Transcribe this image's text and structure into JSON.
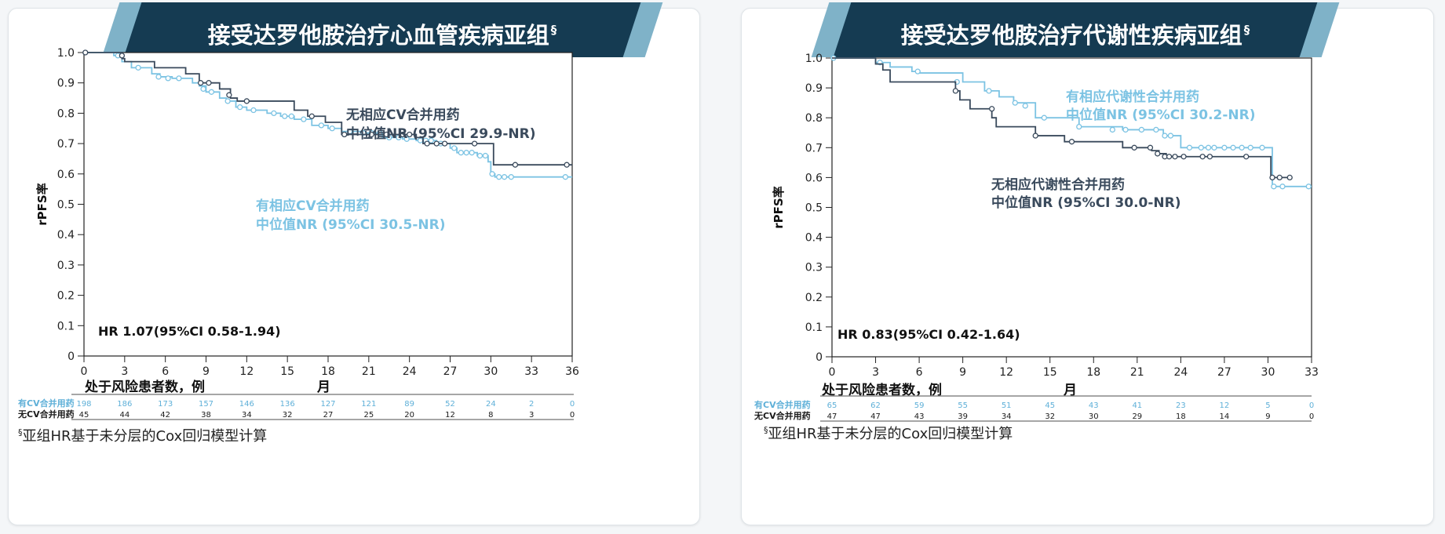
{
  "chart_data": [
    {
      "type": "line",
      "title": "接受达罗他胺治疗心血管疾病亚组",
      "title_mark": "§",
      "ylabel": "rPFS率",
      "xlabel": "月",
      "xlim": [
        0,
        36
      ],
      "ylim": [
        0,
        1.0
      ],
      "x_ticks": [
        "0",
        "3",
        "6",
        "9",
        "12",
        "15",
        "18",
        "21",
        "24",
        "27",
        "30",
        "33",
        "36"
      ],
      "y_ticks": [
        "0",
        "0.1",
        "0.2",
        "0.3",
        "0.4",
        "0.5",
        "0.6",
        "0.7",
        "0.8",
        "0.9",
        "1.0"
      ],
      "hr_text": "HR 1.07(95%CI 0.58-1.94)",
      "risk_title": "处于风险患者数，例",
      "footnote": "亚组HR基于未分层的Cox回归模型计算",
      "footnote_mark": "§",
      "grid": false,
      "series": [
        {
          "name": "有相应CV合并用药",
          "label_line1": "有相应CV合并用药",
          "label_line2": "中位值NR (95%CI 30.5-NR)",
          "color": "#7cc3e3",
          "steps": [
            [
              0,
              1.0
            ],
            [
              2.2,
              0.99
            ],
            [
              2.8,
              0.97
            ],
            [
              3.5,
              0.95
            ],
            [
              5.0,
              0.93
            ],
            [
              5.6,
              0.92
            ],
            [
              6.5,
              0.915
            ],
            [
              8.0,
              0.9
            ],
            [
              8.5,
              0.89
            ],
            [
              9.0,
              0.87
            ],
            [
              10.0,
              0.85
            ],
            [
              10.5,
              0.84
            ],
            [
              11.2,
              0.82
            ],
            [
              12.0,
              0.81
            ],
            [
              13.5,
              0.8
            ],
            [
              14.5,
              0.79
            ],
            [
              15.5,
              0.78
            ],
            [
              16.8,
              0.76
            ],
            [
              18.0,
              0.75
            ],
            [
              19.0,
              0.74
            ],
            [
              20.5,
              0.735
            ],
            [
              22.0,
              0.72
            ],
            [
              23.5,
              0.715
            ],
            [
              24.5,
              0.71
            ],
            [
              26.0,
              0.7
            ],
            [
              27.0,
              0.685
            ],
            [
              27.5,
              0.67
            ],
            [
              29.0,
              0.66
            ],
            [
              29.8,
              0.64
            ],
            [
              30.0,
              0.6
            ],
            [
              30.3,
              0.59
            ],
            [
              36,
              0.59
            ]
          ],
          "censor": [
            [
              2.5,
              0.99
            ],
            [
              4.0,
              0.95
            ],
            [
              5.5,
              0.92
            ],
            [
              6.2,
              0.915
            ],
            [
              7.0,
              0.915
            ],
            [
              8.8,
              0.88
            ],
            [
              9.4,
              0.87
            ],
            [
              10.6,
              0.84
            ],
            [
              11.5,
              0.82
            ],
            [
              12.5,
              0.81
            ],
            [
              14.0,
              0.8
            ],
            [
              14.8,
              0.79
            ],
            [
              15.3,
              0.79
            ],
            [
              16.2,
              0.78
            ],
            [
              17.5,
              0.76
            ],
            [
              18.3,
              0.75
            ],
            [
              19.6,
              0.74
            ],
            [
              20.6,
              0.735
            ],
            [
              21.2,
              0.735
            ],
            [
              21.8,
              0.735
            ],
            [
              22.5,
              0.72
            ],
            [
              23.2,
              0.72
            ],
            [
              23.8,
              0.715
            ],
            [
              24.8,
              0.71
            ],
            [
              25.2,
              0.71
            ],
            [
              25.6,
              0.71
            ],
            [
              26.3,
              0.7
            ],
            [
              27.3,
              0.685
            ],
            [
              27.8,
              0.67
            ],
            [
              28.2,
              0.67
            ],
            [
              28.6,
              0.67
            ],
            [
              29.2,
              0.66
            ],
            [
              29.6,
              0.66
            ],
            [
              30.1,
              0.6
            ],
            [
              30.6,
              0.59
            ],
            [
              31.0,
              0.59
            ],
            [
              31.5,
              0.59
            ],
            [
              35.5,
              0.59
            ]
          ]
        },
        {
          "name": "无相应CV合并用药",
          "label_line1": "无相应CV合并用药",
          "label_line2": "中位值NR (95%CI 29.9-NR)",
          "color": "#3a4a5c",
          "steps": [
            [
              0,
              1.0
            ],
            [
              2.8,
              0.98
            ],
            [
              3.0,
              0.97
            ],
            [
              5.2,
              0.95
            ],
            [
              7.5,
              0.93
            ],
            [
              8.5,
              0.9
            ],
            [
              10.0,
              0.88
            ],
            [
              10.8,
              0.85
            ],
            [
              11.3,
              0.84
            ],
            [
              12.0,
              0.84
            ],
            [
              15.5,
              0.81
            ],
            [
              16.5,
              0.79
            ],
            [
              17.8,
              0.77
            ],
            [
              19.0,
              0.73
            ],
            [
              24.5,
              0.72
            ],
            [
              25.0,
              0.7
            ],
            [
              27.0,
              0.7
            ],
            [
              30.0,
              0.7
            ],
            [
              30.2,
              0.63
            ],
            [
              36,
              0.63
            ]
          ],
          "censor": [
            [
              0.1,
              1.0
            ],
            [
              2.8,
              0.99
            ],
            [
              8.6,
              0.9
            ],
            [
              9.2,
              0.9
            ],
            [
              10.7,
              0.86
            ],
            [
              12.0,
              0.84
            ],
            [
              16.8,
              0.79
            ],
            [
              19.2,
              0.73
            ],
            [
              21.2,
              0.73
            ],
            [
              22.3,
              0.73
            ],
            [
              23.5,
              0.73
            ],
            [
              24.0,
              0.73
            ],
            [
              25.3,
              0.7
            ],
            [
              26.0,
              0.7
            ],
            [
              26.6,
              0.7
            ],
            [
              28.8,
              0.7
            ],
            [
              31.8,
              0.63
            ],
            [
              35.6,
              0.63
            ]
          ]
        }
      ],
      "risk_table": [
        {
          "label": "有CV合并用药",
          "color": "#5fb0d8",
          "values": [
            "198",
            "186",
            "173",
            "157",
            "146",
            "136",
            "127",
            "121",
            "89",
            "52",
            "24",
            "2",
            "0"
          ]
        },
        {
          "label": "无CV合并用药",
          "color": "#1a1a1a",
          "values": [
            "45",
            "44",
            "42",
            "38",
            "34",
            "32",
            "27",
            "25",
            "20",
            "12",
            "8",
            "3",
            "0"
          ]
        }
      ]
    },
    {
      "type": "line",
      "title": "接受达罗他胺治疗代谢性疾病亚组",
      "title_mark": "§",
      "ylabel": "rPFS率",
      "xlabel": "月",
      "xlim": [
        0,
        33
      ],
      "ylim": [
        0,
        1.0
      ],
      "x_ticks": [
        "0",
        "3",
        "6",
        "9",
        "12",
        "15",
        "18",
        "21",
        "24",
        "27",
        "30",
        "33"
      ],
      "y_ticks": [
        "0",
        "0.1",
        "0.2",
        "0.3",
        "0.4",
        "0.5",
        "0.6",
        "0.7",
        "0.8",
        "0.9",
        "1.0"
      ],
      "hr_text": "HR 0.83(95%CI 0.42-1.64)",
      "risk_title": "处于风险患者数，例",
      "footnote": "亚组HR基于未分层的Cox回归模型计算",
      "footnote_mark": "§",
      "grid": false,
      "series": [
        {
          "name": "有相应代谢性合并用药",
          "label_line1": "有相应代谢性合并用药",
          "label_line2": "中位值NR (95%CI 30.2-NR)",
          "color": "#7cc3e3",
          "steps": [
            [
              0,
              1.0
            ],
            [
              3.0,
              0.985
            ],
            [
              4.0,
              0.97
            ],
            [
              5.5,
              0.955
            ],
            [
              6.0,
              0.95
            ],
            [
              9.0,
              0.92
            ],
            [
              10.5,
              0.89
            ],
            [
              11.5,
              0.87
            ],
            [
              12.5,
              0.85
            ],
            [
              14.0,
              0.8
            ],
            [
              17.0,
              0.77
            ],
            [
              20.0,
              0.76
            ],
            [
              22.8,
              0.74
            ],
            [
              24.0,
              0.7
            ],
            [
              30.0,
              0.7
            ],
            [
              30.3,
              0.57
            ],
            [
              33,
              0.57
            ]
          ],
          "censor": [
            [
              0.1,
              1.0
            ],
            [
              3.3,
              0.985
            ],
            [
              5.9,
              0.955
            ],
            [
              8.6,
              0.92
            ],
            [
              10.8,
              0.89
            ],
            [
              12.6,
              0.85
            ],
            [
              13.3,
              0.84
            ],
            [
              14.6,
              0.8
            ],
            [
              17.0,
              0.77
            ],
            [
              19.3,
              0.76
            ],
            [
              20.2,
              0.76
            ],
            [
              21.3,
              0.76
            ],
            [
              22.3,
              0.76
            ],
            [
              22.9,
              0.74
            ],
            [
              23.3,
              0.74
            ],
            [
              24.6,
              0.7
            ],
            [
              25.4,
              0.7
            ],
            [
              25.9,
              0.7
            ],
            [
              26.3,
              0.7
            ],
            [
              27.0,
              0.7
            ],
            [
              27.6,
              0.7
            ],
            [
              28.2,
              0.7
            ],
            [
              28.8,
              0.7
            ],
            [
              29.6,
              0.7
            ],
            [
              30.4,
              0.57
            ],
            [
              31.0,
              0.57
            ],
            [
              32.8,
              0.57
            ]
          ]
        },
        {
          "name": "无相应代谢性合并用药",
          "label_line1": "无相应代谢性合并用药",
          "label_line2": "中位值NR (95%CI 30.0-NR)",
          "color": "#3a4a5c",
          "steps": [
            [
              0,
              1.0
            ],
            [
              3.0,
              0.98
            ],
            [
              3.5,
              0.96
            ],
            [
              4.0,
              0.92
            ],
            [
              8.5,
              0.89
            ],
            [
              8.8,
              0.86
            ],
            [
              9.5,
              0.83
            ],
            [
              11.0,
              0.8
            ],
            [
              11.3,
              0.77
            ],
            [
              14.0,
              0.74
            ],
            [
              16.0,
              0.72
            ],
            [
              18.0,
              0.72
            ],
            [
              20.0,
              0.7
            ],
            [
              22.0,
              0.69
            ],
            [
              22.5,
              0.68
            ],
            [
              23.0,
              0.67
            ],
            [
              30.0,
              0.67
            ],
            [
              30.2,
              0.6
            ],
            [
              31.5,
              0.6
            ]
          ],
          "censor": [
            [
              8.5,
              0.89
            ],
            [
              11.0,
              0.83
            ],
            [
              14.0,
              0.74
            ],
            [
              16.5,
              0.72
            ],
            [
              20.8,
              0.7
            ],
            [
              21.9,
              0.7
            ],
            [
              22.4,
              0.68
            ],
            [
              22.9,
              0.67
            ],
            [
              23.2,
              0.67
            ],
            [
              23.6,
              0.67
            ],
            [
              24.2,
              0.67
            ],
            [
              25.5,
              0.67
            ],
            [
              26.0,
              0.67
            ],
            [
              28.5,
              0.67
            ],
            [
              30.3,
              0.6
            ],
            [
              30.8,
              0.6
            ],
            [
              31.5,
              0.6
            ]
          ]
        }
      ],
      "risk_table": [
        {
          "label": "有CV合并用药",
          "color": "#5fb0d8",
          "values": [
            "65",
            "62",
            "59",
            "55",
            "51",
            "45",
            "43",
            "41",
            "23",
            "12",
            "5",
            "0"
          ]
        },
        {
          "label": "无CV合并用药",
          "color": "#1a1a1a",
          "values": [
            "47",
            "47",
            "43",
            "39",
            "34",
            "32",
            "30",
            "29",
            "18",
            "14",
            "9",
            "0"
          ]
        }
      ]
    }
  ]
}
